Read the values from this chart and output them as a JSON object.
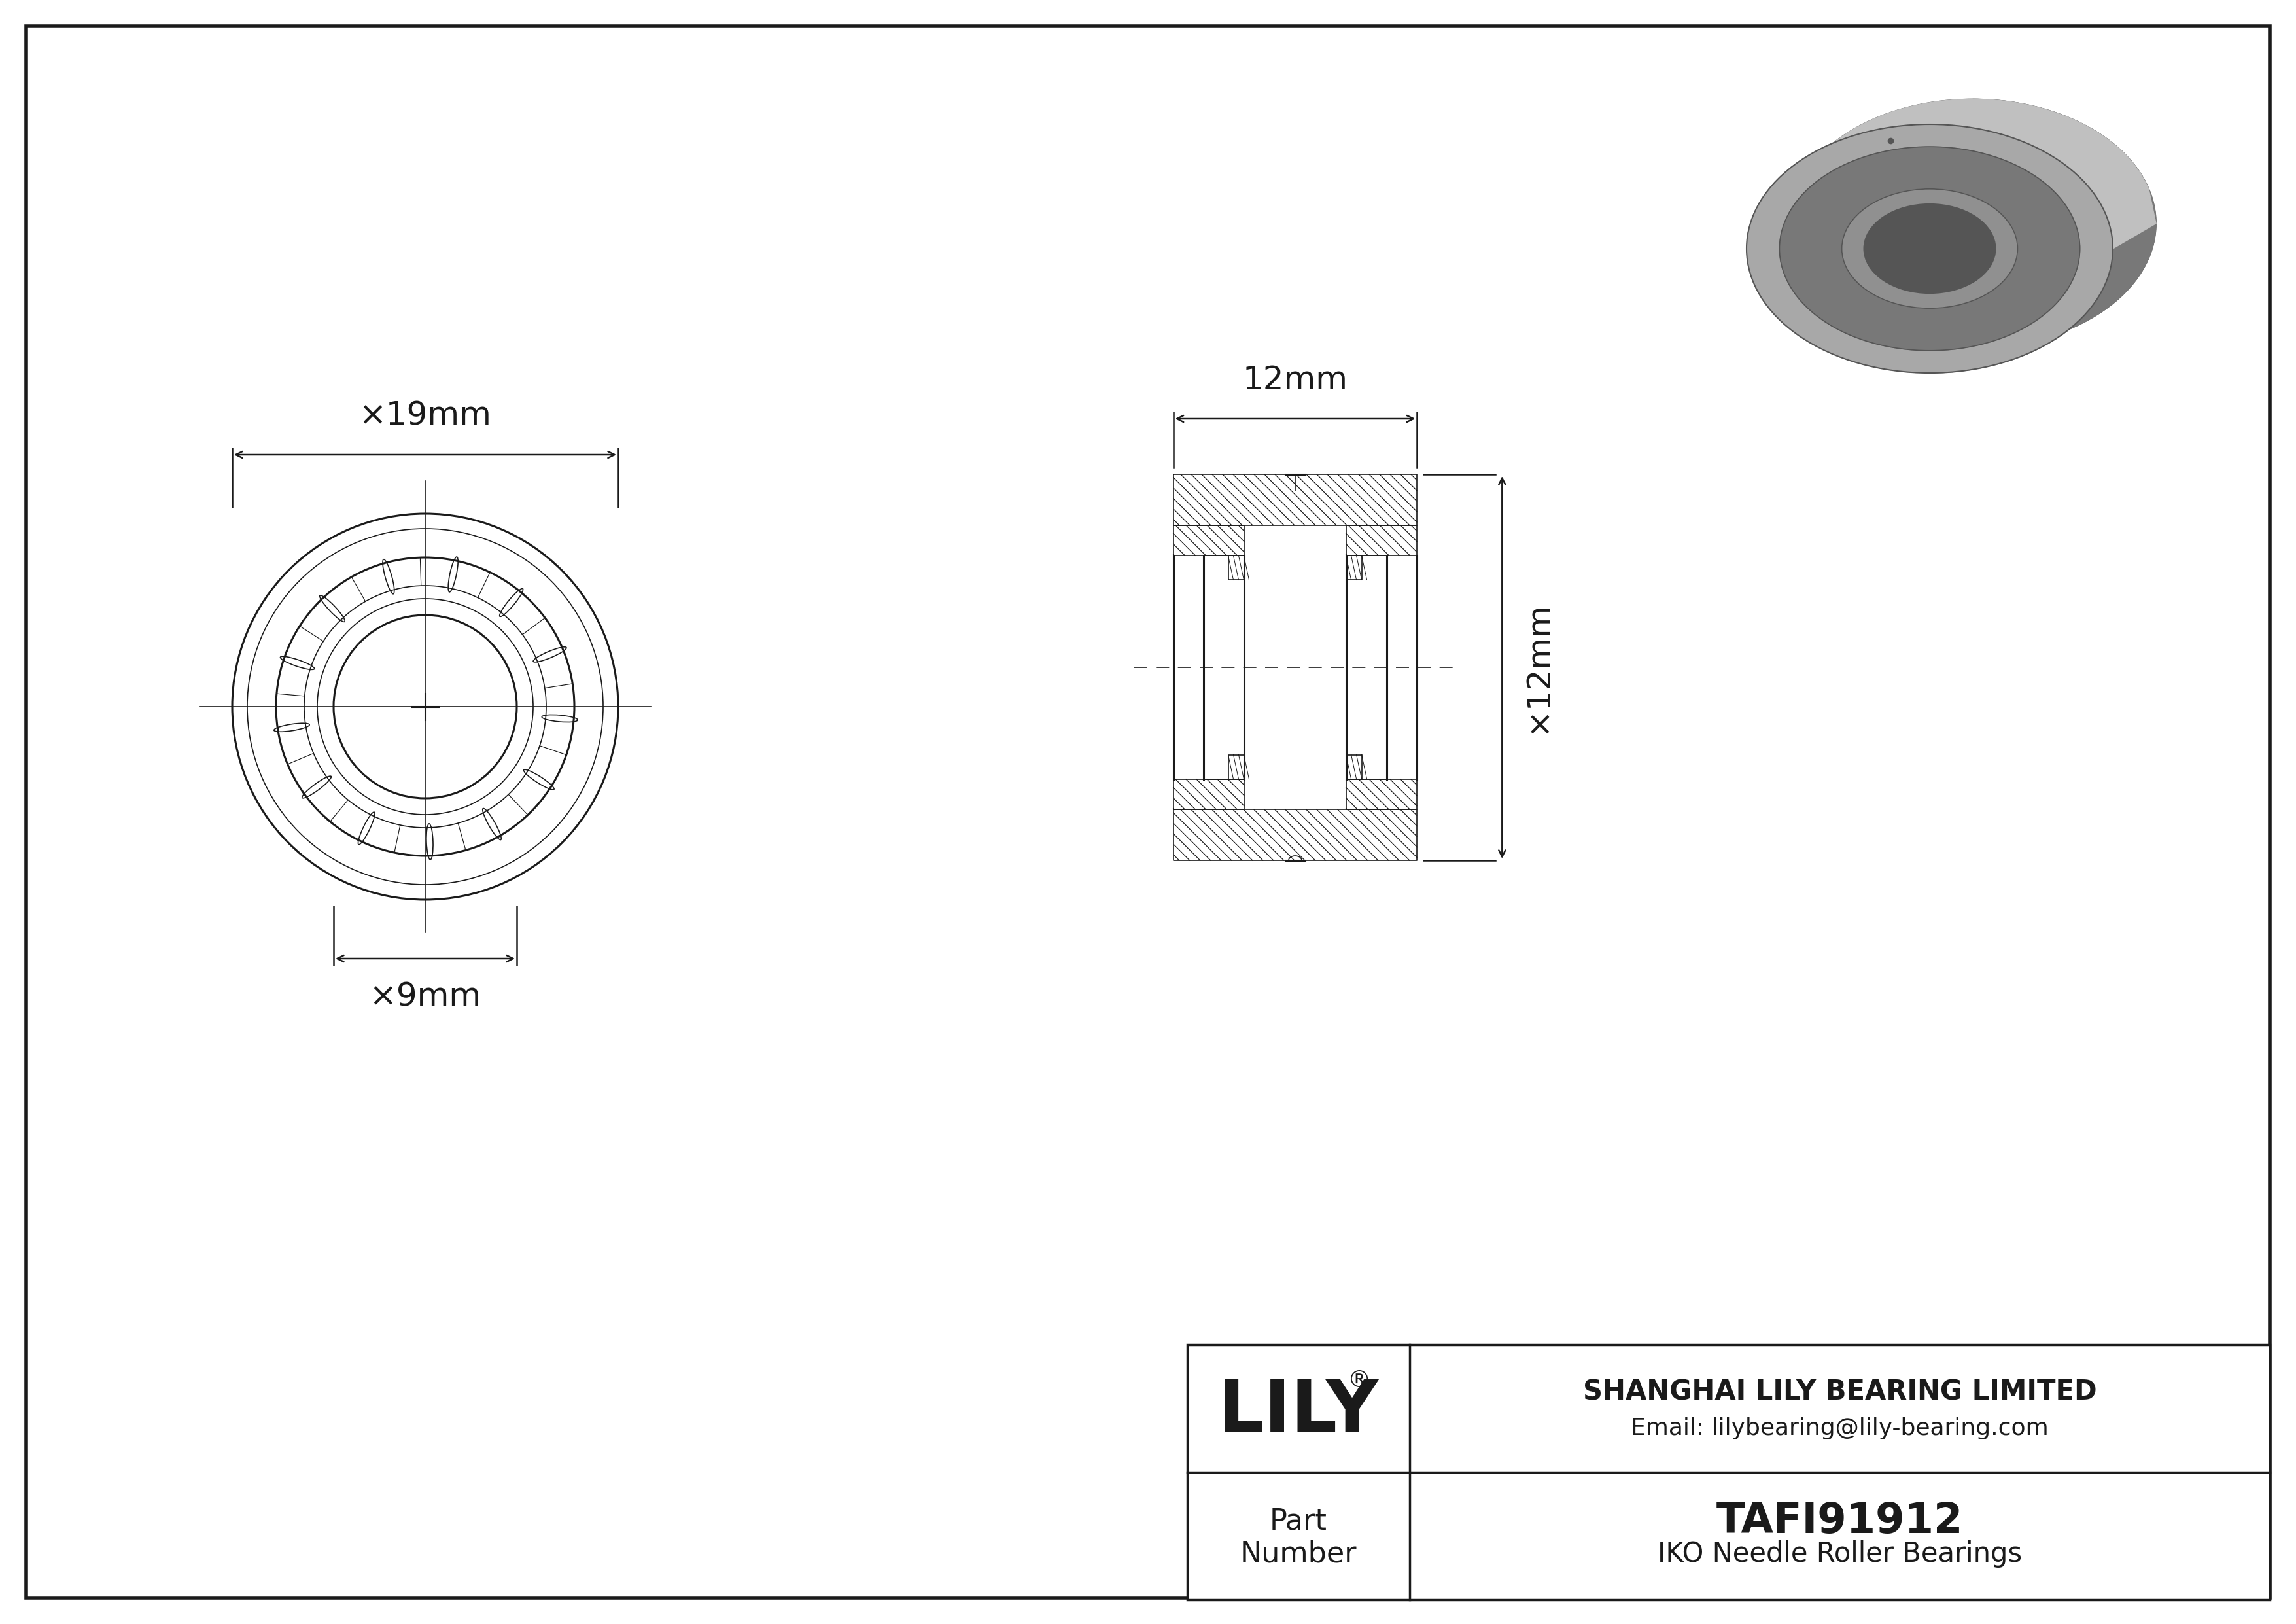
{
  "bg_color": "#ffffff",
  "border_color": "#000000",
  "draw_color": "#1a1a1a",
  "company_name": "SHANGHAI LILY BEARING LIMITED",
  "company_email": "Email: lilybearing@lily-bearing.com",
  "part_number": "TAFI91912",
  "bearing_type": "IKO Needle Roller Bearings",
  "lily_logo": "LILY",
  "dim_od": "×19mm",
  "dim_id": "×9mm",
  "dim_width": "12mm",
  "dim_height": "×12mm",
  "gray3d_light": "#c0c0c0",
  "gray3d_mid": "#a8a8a8",
  "gray3d_dark": "#787878",
  "gray3d_hole": "#909090"
}
